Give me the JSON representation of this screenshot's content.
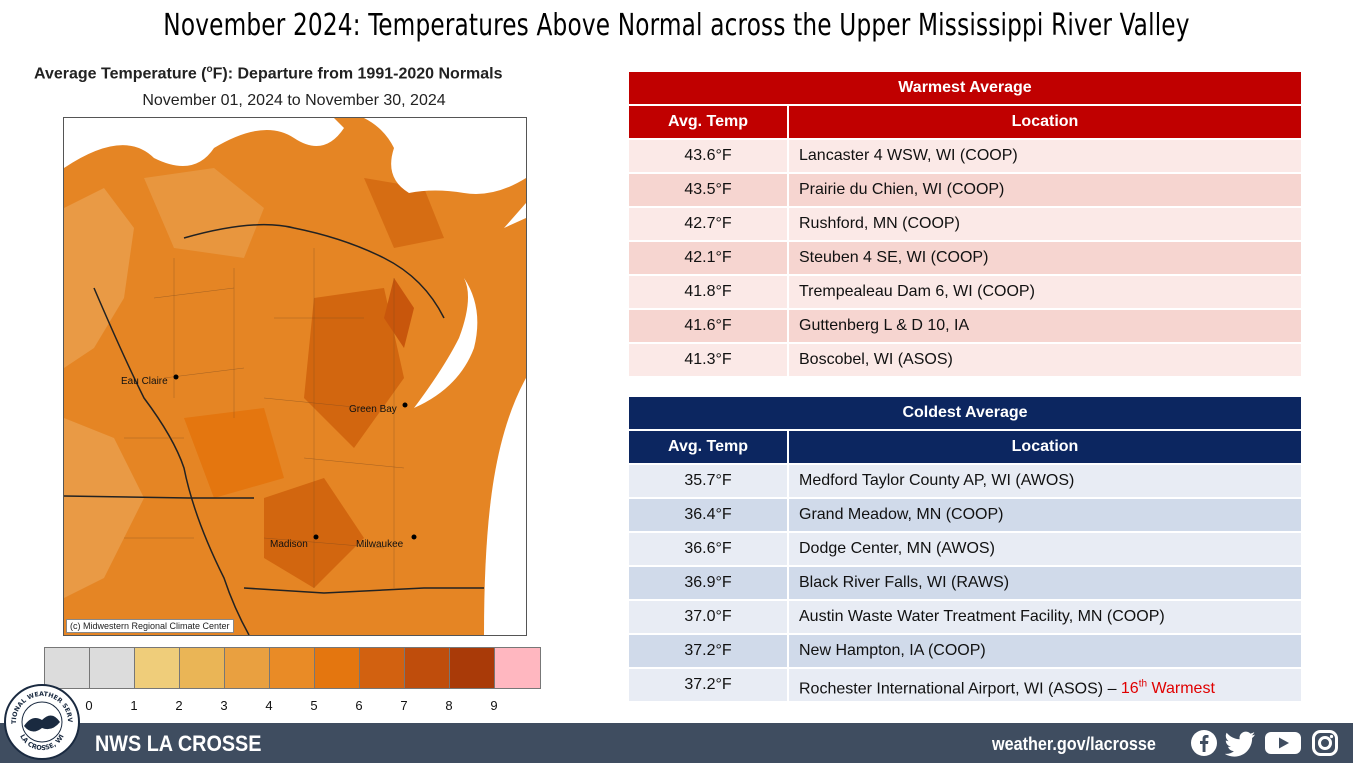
{
  "title": "November 2024:  Temperatures Above Normal across the Upper Mississippi River Valley",
  "map": {
    "title_prefix": "Average Temperature (",
    "title_unit": "o",
    "title_suffix": "F): Departure from 1991-2020 Normals",
    "subtitle": "November 01, 2024 to November 30, 2024",
    "credit": "(c) Midwestern Regional Climate Center",
    "cities": [
      "Eau Claire",
      "Green Bay",
      "Madison",
      "Milwaukee"
    ]
  },
  "legend": {
    "colors": [
      "#dcdcdc",
      "#dcdcdc",
      "#efcd7a",
      "#eab556",
      "#e9a040",
      "#e98b26",
      "#e4760f",
      "#d26110",
      "#bf4d0c",
      "#a93a08",
      "#ffb7c0"
    ],
    "labels": [
      "0",
      "1",
      "2",
      "3",
      "4",
      "5",
      "6",
      "7",
      "8",
      "9"
    ]
  },
  "warmest": {
    "caption": "Warmest  Average",
    "col1": "Avg. Temp",
    "col2": "Location",
    "rows": [
      {
        "temp": "43.6°F",
        "loc": "Lancaster 4 WSW, WI (COOP)"
      },
      {
        "temp": "43.5°F",
        "loc": "Prairie du Chien, WI (COOP)"
      },
      {
        "temp": "42.7°F",
        "loc": "Rushford, MN (COOP)"
      },
      {
        "temp": "42.1°F",
        "loc": "Steuben 4 SE, WI (COOP)"
      },
      {
        "temp": "41.8°F",
        "loc": "Trempealeau Dam 6, WI (COOP)"
      },
      {
        "temp": "41.6°F",
        "loc": "Guttenberg L & D 10, IA"
      },
      {
        "temp": "41.3°F",
        "loc": "Boscobel, WI (ASOS)"
      }
    ],
    "colors": {
      "header": "#c00000",
      "row_light": "#fbe9e7",
      "row_dark": "#f6d5d0"
    }
  },
  "coldest": {
    "caption": "Coldest Average",
    "col1": "Avg. Temp",
    "col2": "Location",
    "rows": [
      {
        "temp": "35.7°F",
        "loc": "Medford Taylor County AP, WI (AWOS)"
      },
      {
        "temp": "36.4°F",
        "loc": "Grand Meadow, MN (COOP)"
      },
      {
        "temp": "36.6°F",
        "loc": "Dodge Center, MN (AWOS)"
      },
      {
        "temp": "36.9°F",
        "loc": "Black River Falls, WI (RAWS)"
      },
      {
        "temp": "37.0°F",
        "loc": "Austin Waste Water Treatment Facility, MN (COOP)"
      },
      {
        "temp": "37.2°F",
        "loc": "New Hampton, IA (COOP)"
      },
      {
        "temp": "37.2°F",
        "loc": "Rochester International Airport, WI (ASOS) – ",
        "note_num": "16",
        "note_sup": "th",
        "note_rest": " Warmest"
      }
    ],
    "colors": {
      "header": "#0c2660",
      "row_light": "#e8ecf4",
      "row_dark": "#d0daea"
    }
  },
  "footer": {
    "brand": "NWS LA CROSSE",
    "url": "weather.gov/lacrosse",
    "social": [
      "facebook-icon",
      "twitter-icon",
      "youtube-icon",
      "instagram-icon"
    ]
  },
  "logo": {
    "top_text": "NATIONAL WEATHER SERVICE",
    "bottom_text": "LA CROSSE, WI"
  }
}
